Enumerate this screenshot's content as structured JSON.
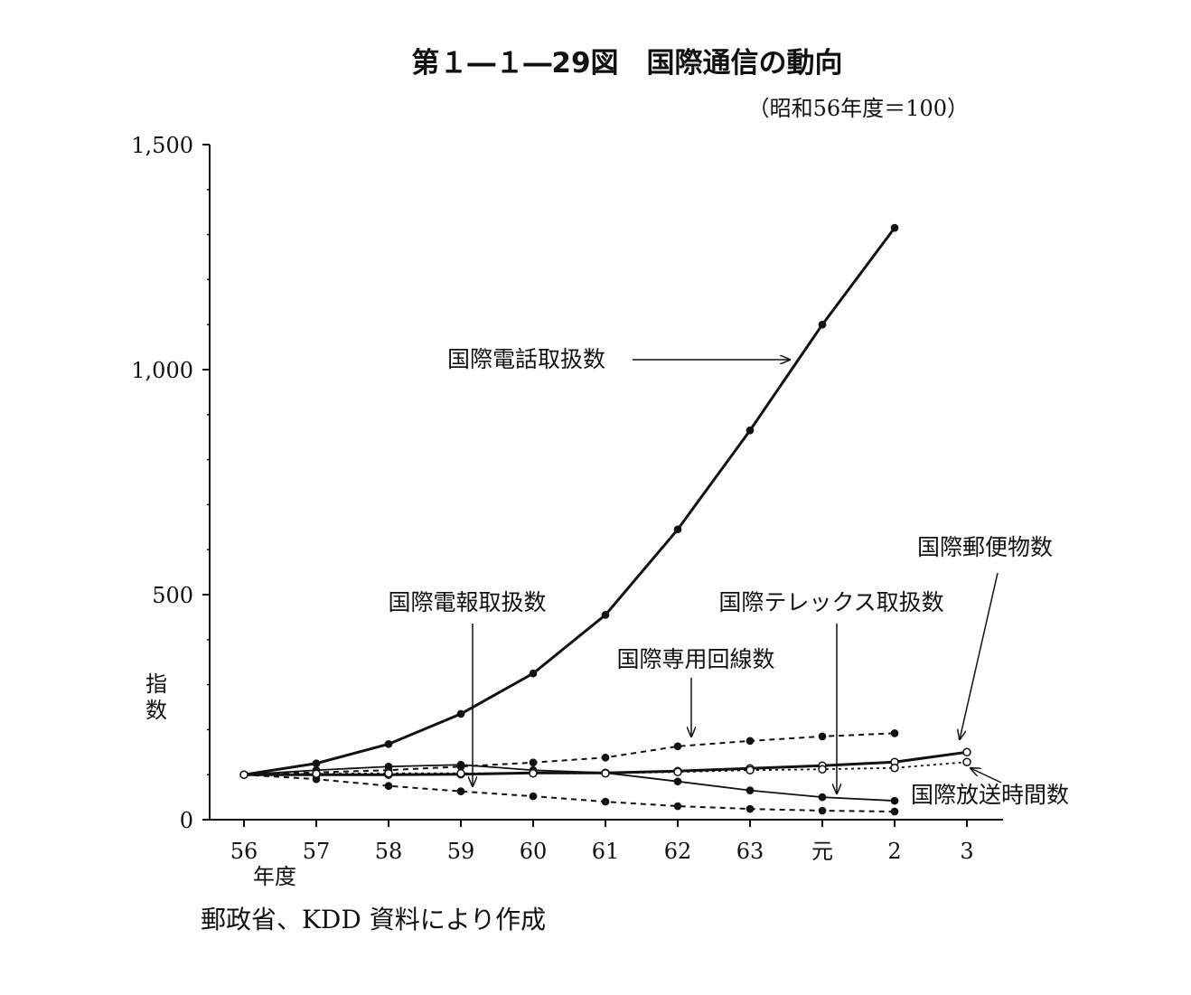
{
  "chart_data": {
    "type": "line",
    "title": "第１―１―29図　国際通信の動向",
    "subtitle": "（昭和56年度＝100）",
    "xlabel": "年度",
    "ylabel": "指数",
    "categories": [
      "56",
      "57",
      "58",
      "59",
      "60",
      "61",
      "62",
      "63",
      "元",
      "2",
      "3"
    ],
    "yticks": [
      "0",
      "500",
      "1,000",
      "1,500"
    ],
    "ylim": [
      0,
      1500
    ],
    "grid": false,
    "legend": "inline annotations with arrows",
    "series": [
      {
        "key": "telephone",
        "name": "国際電話取扱数",
        "style": "solid-thick",
        "marker": "filled",
        "values": [
          100,
          125,
          168,
          235,
          325,
          455,
          645,
          865,
          1100,
          1315,
          null
        ]
      },
      {
        "key": "telegram",
        "name": "国際電報取扱数",
        "style": "dashed",
        "marker": "filled",
        "values": [
          100,
          90,
          75,
          63,
          52,
          40,
          30,
          24,
          20,
          18,
          null
        ]
      },
      {
        "key": "leased",
        "name": "国際専用回線数",
        "style": "dashed",
        "marker": "filled",
        "values": [
          100,
          105,
          110,
          118,
          127,
          138,
          163,
          175,
          185,
          192,
          null
        ]
      },
      {
        "key": "telex",
        "name": "国際テレックス取扱数",
        "style": "solid",
        "marker": "filled",
        "values": [
          100,
          110,
          118,
          122,
          110,
          104,
          85,
          65,
          50,
          42,
          null
        ]
      },
      {
        "key": "mail",
        "name": "国際郵便物数",
        "style": "solid-thick",
        "marker": "open",
        "values": [
          100,
          100,
          100,
          101,
          104,
          104,
          108,
          114,
          120,
          128,
          150
        ]
      },
      {
        "key": "broadcast",
        "name": "国際放送時間数",
        "style": "dotted",
        "marker": "open",
        "values": [
          100,
          102,
          103,
          103,
          103,
          103,
          106,
          110,
          112,
          115,
          128
        ]
      }
    ],
    "source": "郵政省、KDD 資料により作成"
  }
}
